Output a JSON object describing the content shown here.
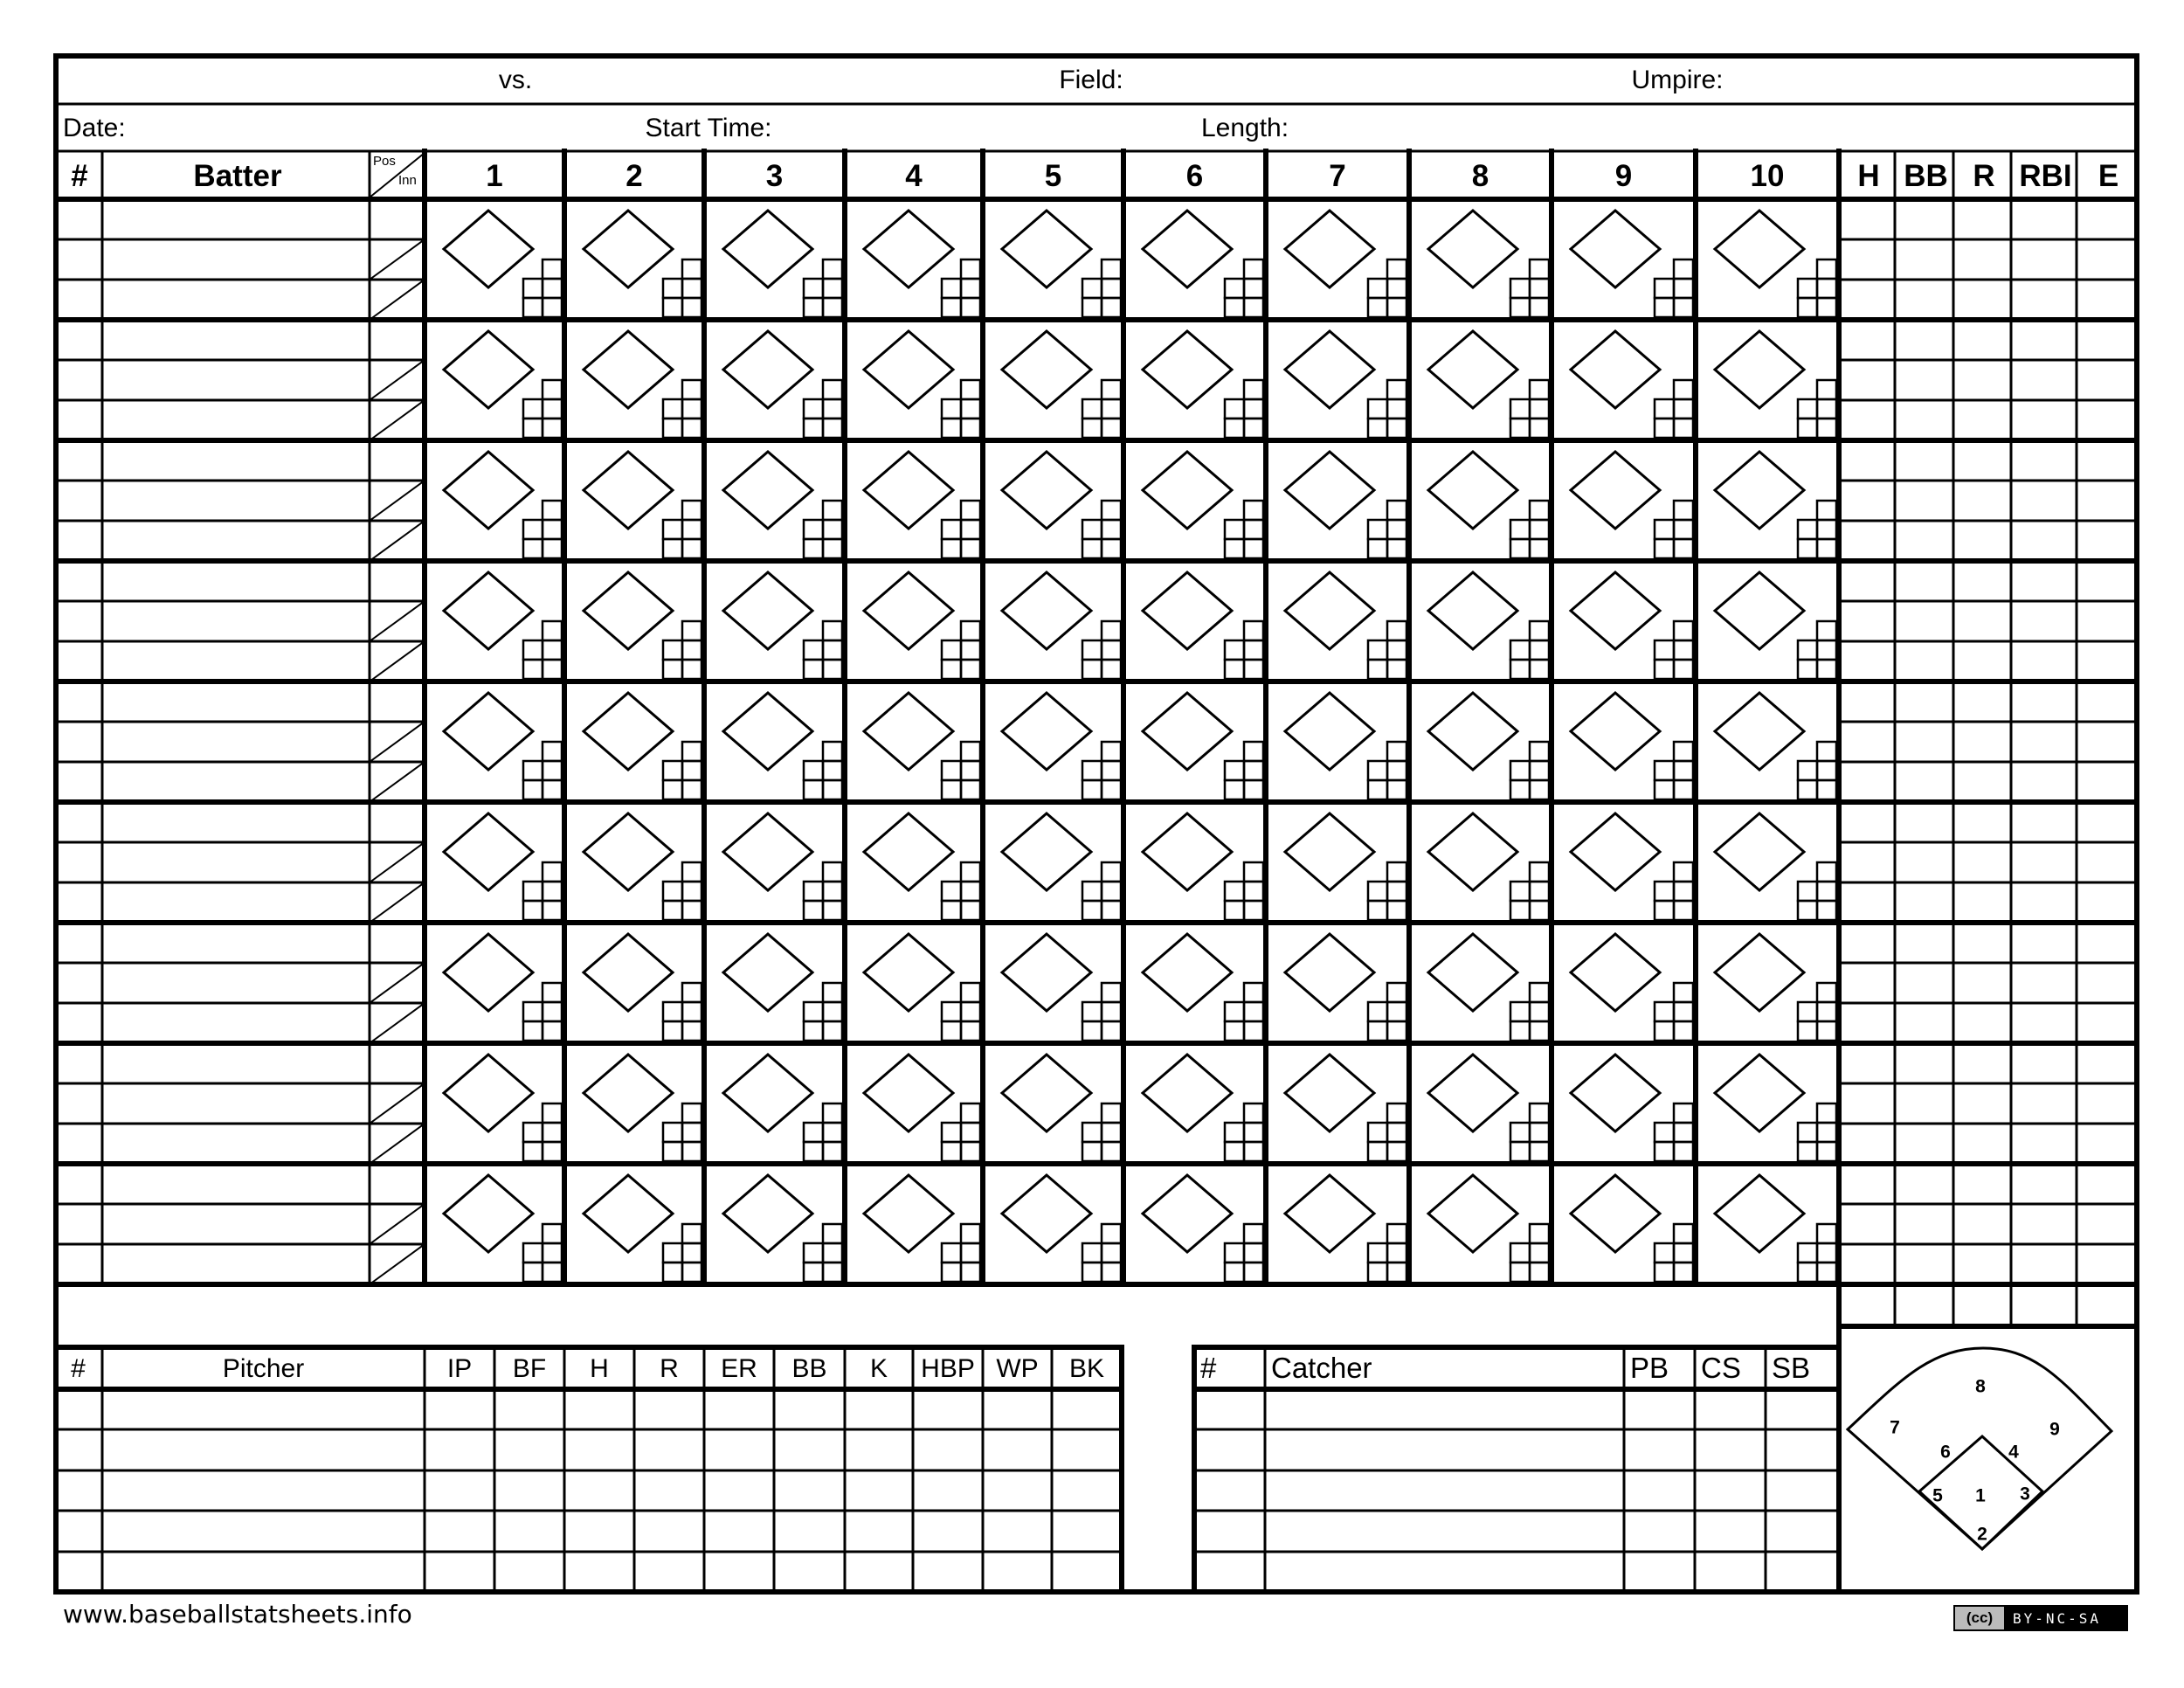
{
  "header": {
    "vs_label": "vs.",
    "field_label": "Field:",
    "umpire_label": "Umpire:",
    "date_label": "Date:",
    "start_time_label": "Start Time:",
    "length_label": "Length:"
  },
  "batting": {
    "number_label": "#",
    "batter_label": "Batter",
    "pos_label": "Pos",
    "inn_label": "Inn",
    "innings": [
      "1",
      "2",
      "3",
      "4",
      "5",
      "6",
      "7",
      "8",
      "9",
      "10"
    ],
    "stats": [
      "H",
      "BB",
      "R",
      "RBI",
      "E"
    ],
    "batter_slots": 9,
    "rows_per_slot": 3
  },
  "pitching": {
    "headers": [
      "#",
      "Pitcher",
      "IP",
      "BF",
      "H",
      "R",
      "ER",
      "BB",
      "K",
      "HBP",
      "WP",
      "BK"
    ],
    "rows": 5
  },
  "catching": {
    "headers": [
      "#",
      "Catcher",
      "PB",
      "CS",
      "SB"
    ],
    "rows": 5
  },
  "field_diagram": {
    "positions": [
      "1",
      "2",
      "3",
      "4",
      "5",
      "6",
      "7",
      "8",
      "9"
    ]
  },
  "footer": {
    "website": "www.baseballstatsheets.info",
    "license_cc": "(cc)",
    "license_terms": "BY-NC-SA"
  }
}
